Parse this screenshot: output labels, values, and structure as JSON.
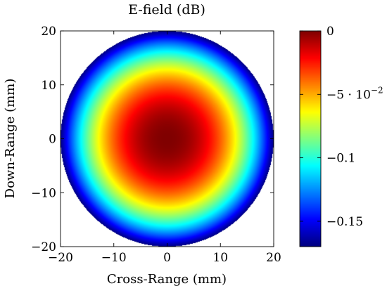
{
  "chart_data": {
    "type": "heatmap",
    "title": "E-field (dB)",
    "xlabel": "Cross-Range (mm)",
    "ylabel": "Down-Range (mm)",
    "xlim": [
      -20,
      20
    ],
    "ylim": [
      -20,
      20
    ],
    "x_ticks": [
      -20,
      -10,
      0,
      10,
      20
    ],
    "y_ticks": [
      -20,
      -10,
      0,
      10,
      20
    ],
    "x_tick_labels": [
      "−20",
      "−10",
      "0",
      "10",
      "20"
    ],
    "y_tick_labels": [
      "−20",
      "−10",
      "0",
      "10",
      "20"
    ],
    "grid": false,
    "domain": "circle",
    "domain_radius_mm": 20,
    "field_model": {
      "description_values": "dB relative to peak, approximately radially symmetric",
      "center_mm": [
        0,
        0
      ],
      "peak_db": 0,
      "edge_db": -0.17,
      "profile_exponent": 2.2
    },
    "colorbar": {
      "colormap": "jet",
      "range": [
        -0.17,
        0
      ],
      "ticks": [
        0,
        -0.05,
        -0.1,
        -0.15
      ],
      "tick_labels": [
        "0",
        "−5 · 10",
        "−0.1",
        "−0.15"
      ],
      "tick_exponent": "−2",
      "placement": "right"
    }
  }
}
